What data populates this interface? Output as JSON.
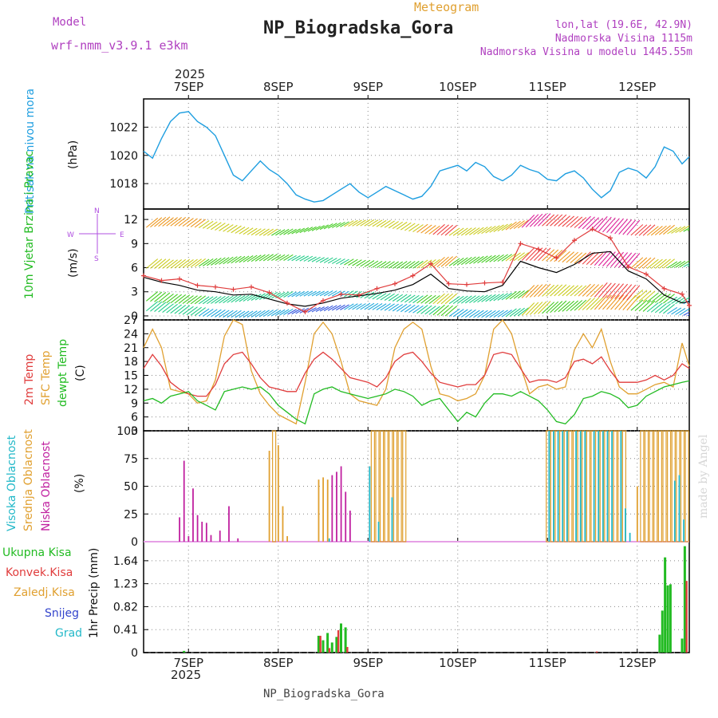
{
  "header": {
    "model_label": "Model",
    "model_name": "wrf-nmm_v3.9.1 e3km",
    "title": "NP_Biogradska_Gora",
    "chart_type": "Meteogram",
    "lonlat": "lon,lat (19.6E, 42.9N)",
    "elevation": "Nadmorska Visina 1115m",
    "model_elevation": "Nadmorska Visina u modelu 1445.55m",
    "footer_station": "NP_Biogradska_Gora",
    "watermark": "made by Angel",
    "year": "2025"
  },
  "colors": {
    "pressure": "#1e9ee0",
    "red": "#e03c3c",
    "orange": "#e0a030",
    "green": "#22bb22",
    "purple": "#b040c0",
    "cyan": "#22b8c8",
    "blue": "#3344cc",
    "magenta": "#c020a0",
    "violet": "#b050e0"
  },
  "axes": {
    "dates": [
      "7SEP",
      "8SEP",
      "9SEP",
      "10SEP",
      "11SEP",
      "12SEP"
    ],
    "x_range_days": [
      6.5,
      12.58
    ]
  },
  "chart_data": [
    {
      "type": "line",
      "panel": "pressure",
      "ylabel_desc": "Pritisak na nivou mora",
      "ylabel_unit": "(hPa)",
      "ylim": [
        1016.2,
        1024.0
      ],
      "yticks": [
        1018,
        1020,
        1022
      ],
      "series": [
        {
          "name": "MSLP",
          "x": [
            6.5,
            6.6,
            6.7,
            6.8,
            6.9,
            7.0,
            7.1,
            7.2,
            7.3,
            7.4,
            7.5,
            7.6,
            7.7,
            7.8,
            7.9,
            8.0,
            8.1,
            8.2,
            8.3,
            8.4,
            8.5,
            8.6,
            8.7,
            8.8,
            8.9,
            9.0,
            9.1,
            9.2,
            9.3,
            9.4,
            9.5,
            9.6,
            9.7,
            9.8,
            9.9,
            10.0,
            10.1,
            10.2,
            10.3,
            10.4,
            10.5,
            10.6,
            10.7,
            10.8,
            10.9,
            11.0,
            11.1,
            11.2,
            11.3,
            11.4,
            11.5,
            11.6,
            11.7,
            11.8,
            11.9,
            12.0,
            12.1,
            12.2,
            12.3,
            12.4,
            12.5,
            12.58
          ],
          "values": [
            1020.3,
            1019.8,
            1021.2,
            1022.4,
            1023.0,
            1023.1,
            1022.4,
            1022.0,
            1021.4,
            1020.0,
            1018.6,
            1018.2,
            1018.9,
            1019.6,
            1019.0,
            1018.6,
            1018.0,
            1017.2,
            1016.9,
            1016.7,
            1016.8,
            1017.2,
            1017.6,
            1018.0,
            1017.4,
            1017.0,
            1017.4,
            1017.8,
            1017.5,
            1017.2,
            1016.9,
            1017.1,
            1017.8,
            1018.9,
            1019.1,
            1019.3,
            1018.9,
            1019.5,
            1019.2,
            1018.5,
            1018.2,
            1018.6,
            1019.3,
            1019.0,
            1018.8,
            1018.3,
            1018.2,
            1018.7,
            1018.9,
            1018.4,
            1017.6,
            1017.0,
            1017.5,
            1018.8,
            1019.1,
            1018.9,
            1018.4,
            1019.2,
            1020.6,
            1020.3,
            1019.4,
            1019.9
          ]
        }
      ]
    },
    {
      "type": "line",
      "panel": "wind",
      "ylabel_desc": "10m Vjetar Brzina i Pravac",
      "ylabel_unit": "(m/s)",
      "compass_labels": [
        "W",
        "E",
        "N",
        "S"
      ],
      "ylim": [
        -0.5,
        13.3
      ],
      "yticks": [
        0,
        3,
        6,
        9,
        12
      ],
      "series": [
        {
          "name": "Speed",
          "x": [
            6.5,
            6.7,
            6.9,
            7.1,
            7.3,
            7.5,
            7.7,
            7.9,
            8.1,
            8.3,
            8.5,
            8.7,
            8.9,
            9.1,
            9.3,
            9.5,
            9.7,
            9.9,
            10.1,
            10.3,
            10.5,
            10.7,
            10.9,
            11.1,
            11.3,
            11.5,
            11.7,
            11.9,
            12.1,
            12.3,
            12.5,
            12.58
          ],
          "values": [
            4.8,
            4.2,
            3.8,
            3.2,
            3.0,
            2.6,
            2.7,
            2.1,
            1.5,
            1.2,
            1.6,
            2.2,
            2.5,
            2.8,
            3.2,
            3.9,
            5.2,
            3.4,
            3.1,
            3.0,
            3.8,
            6.8,
            6.0,
            5.4,
            6.4,
            7.8,
            8.0,
            5.6,
            4.6,
            2.6,
            1.6,
            1.8
          ]
        },
        {
          "name": "Gust",
          "x": [
            6.5,
            6.7,
            6.9,
            7.1,
            7.3,
            7.5,
            7.7,
            7.9,
            8.1,
            8.3,
            8.5,
            8.7,
            8.9,
            9.1,
            9.3,
            9.5,
            9.7,
            9.9,
            10.1,
            10.3,
            10.5,
            10.7,
            10.9,
            11.1,
            11.3,
            11.5,
            11.7,
            11.9,
            12.1,
            12.3,
            12.5,
            12.58
          ],
          "values": [
            5.0,
            4.4,
            4.6,
            3.8,
            3.6,
            3.3,
            3.6,
            2.9,
            1.6,
            0.5,
            1.9,
            2.7,
            2.6,
            3.4,
            4.0,
            5.0,
            6.5,
            4.0,
            3.9,
            4.1,
            4.2,
            9.0,
            8.3,
            7.2,
            9.4,
            10.8,
            9.7,
            6.1,
            5.2,
            3.4,
            2.7,
            1.3
          ]
        }
      ]
    },
    {
      "type": "line",
      "panel": "temperature",
      "ylabel_desc1": "2m Temp",
      "ylabel_desc2": "SFC Temp",
      "ylabel_desc3": "dewpt Temp",
      "ylabel_unit": "(C)",
      "ylim": [
        3,
        27
      ],
      "yticks": [
        3,
        6,
        9,
        12,
        15,
        18,
        21,
        24,
        27
      ],
      "series": [
        {
          "name": "2m Temp",
          "x": [
            6.5,
            6.6,
            6.7,
            6.8,
            6.9,
            7.0,
            7.1,
            7.2,
            7.3,
            7.4,
            7.5,
            7.6,
            7.7,
            7.8,
            7.9,
            8.0,
            8.1,
            8.2,
            8.3,
            8.4,
            8.5,
            8.6,
            8.7,
            8.8,
            8.9,
            9.0,
            9.1,
            9.2,
            9.3,
            9.4,
            9.5,
            9.6,
            9.7,
            9.8,
            9.9,
            10.0,
            10.1,
            10.2,
            10.3,
            10.4,
            10.5,
            10.6,
            10.7,
            10.8,
            10.9,
            11.0,
            11.1,
            11.2,
            11.3,
            11.4,
            11.5,
            11.6,
            11.7,
            11.8,
            11.9,
            12.0,
            12.1,
            12.2,
            12.3,
            12.4,
            12.5,
            12.58
          ],
          "values": [
            16.5,
            19.5,
            17.0,
            13.5,
            12.0,
            11.0,
            10.5,
            10.5,
            13.0,
            17.5,
            19.5,
            20.0,
            17.5,
            14.5,
            12.5,
            12.0,
            11.5,
            11.5,
            15.5,
            18.5,
            20.0,
            18.5,
            16.5,
            14.5,
            14.0,
            13.5,
            12.5,
            14.5,
            18.0,
            19.5,
            20.0,
            18.0,
            15.5,
            13.5,
            13.0,
            12.5,
            13.0,
            13.0,
            15.0,
            19.5,
            20.0,
            19.5,
            16.5,
            13.5,
            14.0,
            14.0,
            13.5,
            14.5,
            18.0,
            18.5,
            17.5,
            19.0,
            16.0,
            13.5,
            13.5,
            13.5,
            14.0,
            15.0,
            14.0,
            15.0,
            17.5,
            16.5
          ]
        },
        {
          "name": "SFC Temp",
          "x": [
            6.5,
            6.6,
            6.7,
            6.8,
            6.9,
            7.0,
            7.1,
            7.2,
            7.3,
            7.4,
            7.5,
            7.6,
            7.7,
            7.8,
            7.9,
            8.0,
            8.1,
            8.2,
            8.3,
            8.4,
            8.5,
            8.6,
            8.7,
            8.8,
            8.9,
            9.0,
            9.1,
            9.2,
            9.3,
            9.4,
            9.5,
            9.6,
            9.7,
            9.8,
            9.9,
            10.0,
            10.1,
            10.2,
            10.3,
            10.4,
            10.5,
            10.6,
            10.7,
            10.8,
            10.9,
            11.0,
            11.1,
            11.2,
            11.3,
            11.4,
            11.5,
            11.6,
            11.7,
            11.8,
            11.9,
            12.0,
            12.1,
            12.2,
            12.3,
            12.4,
            12.5,
            12.58
          ],
          "values": [
            21.0,
            25.0,
            21.0,
            12.0,
            11.5,
            11.0,
            9.0,
            9.5,
            14.0,
            23.5,
            27.0,
            26.0,
            16.0,
            11.0,
            8.5,
            6.5,
            5.5,
            4.5,
            13.5,
            24.0,
            26.5,
            24.0,
            18.0,
            11.0,
            9.5,
            9.0,
            8.5,
            12.0,
            21.0,
            25.0,
            26.5,
            25.0,
            17.0,
            11.0,
            10.5,
            9.5,
            10.0,
            11.0,
            15.0,
            25.0,
            27.0,
            24.0,
            17.0,
            11.0,
            12.5,
            13.0,
            12.0,
            12.5,
            20.5,
            24.0,
            21.0,
            25.0,
            18.0,
            12.5,
            11.0,
            11.0,
            12.0,
            13.0,
            13.5,
            12.5,
            22.0,
            17.0
          ]
        },
        {
          "name": "dewpt Temp",
          "x": [
            6.5,
            6.6,
            6.7,
            6.8,
            6.9,
            7.0,
            7.1,
            7.2,
            7.3,
            7.4,
            7.5,
            7.6,
            7.7,
            7.8,
            7.9,
            8.0,
            8.1,
            8.2,
            8.3,
            8.4,
            8.5,
            8.6,
            8.7,
            8.8,
            8.9,
            9.0,
            9.1,
            9.2,
            9.3,
            9.4,
            9.5,
            9.6,
            9.7,
            9.8,
            9.9,
            10.0,
            10.1,
            10.2,
            10.3,
            10.4,
            10.5,
            10.6,
            10.7,
            10.8,
            10.9,
            11.0,
            11.1,
            11.2,
            11.3,
            11.4,
            11.5,
            11.6,
            11.7,
            11.8,
            11.9,
            12.0,
            12.1,
            12.2,
            12.3,
            12.4,
            12.5,
            12.58
          ],
          "values": [
            9.5,
            10.0,
            9.0,
            10.5,
            11.0,
            11.5,
            9.5,
            8.5,
            7.5,
            11.5,
            12.0,
            12.5,
            12.0,
            12.5,
            11.0,
            8.5,
            7.0,
            5.5,
            4.5,
            11.0,
            12.0,
            12.5,
            11.5,
            11.0,
            10.5,
            10.0,
            10.5,
            11.0,
            12.0,
            11.5,
            10.5,
            8.5,
            9.5,
            10.0,
            7.5,
            5.0,
            7.0,
            6.0,
            9.0,
            11.0,
            11.0,
            10.5,
            11.5,
            10.5,
            9.5,
            7.5,
            5.0,
            4.5,
            6.5,
            10.0,
            10.5,
            11.5,
            11.0,
            10.0,
            8.0,
            8.5,
            10.5,
            11.5,
            12.5,
            13.0,
            13.5,
            13.8
          ]
        }
      ]
    },
    {
      "type": "bar",
      "panel": "clouds",
      "ylabel_desc1": "Visoka Oblacnost",
      "ylabel_desc2": "Srednja Oblacnost",
      "ylabel_desc3": "Niska Oblacnost",
      "ylabel_unit": "(%)",
      "ylim": [
        0,
        100
      ],
      "yticks": [
        0,
        25,
        50,
        75,
        100
      ],
      "series": [
        {
          "name": "Niska",
          "x": [
            6.9,
            6.95,
            7.0,
            7.05,
            7.1,
            7.15,
            7.2,
            7.25,
            7.35,
            7.45,
            7.55,
            8.6,
            8.65,
            8.7,
            8.75,
            8.8
          ],
          "values": [
            22,
            73,
            5,
            48,
            24,
            18,
            17,
            6,
            10,
            32,
            3,
            60,
            63,
            68,
            45,
            28
          ]
        },
        {
          "name": "Srednja",
          "x": [
            7.9,
            7.95,
            8.0,
            8.05,
            8.1,
            8.45,
            8.5,
            8.55,
            9.05,
            9.1,
            9.15,
            9.2,
            9.25,
            9.3,
            9.35,
            9.4,
            11.0,
            11.05,
            11.1,
            11.15,
            11.2,
            11.25,
            11.3,
            11.35,
            11.4,
            11.45,
            11.5,
            11.55,
            11.6,
            11.65,
            11.7,
            11.75,
            11.8,
            11.85,
            12.0,
            12.05,
            12.1,
            12.15,
            12.2,
            12.25,
            12.3,
            12.35,
            12.4,
            12.45,
            12.5,
            12.55
          ],
          "values": [
            82,
            100,
            87,
            32,
            5,
            56,
            58,
            56,
            100,
            100,
            100,
            100,
            100,
            100,
            100,
            100,
            100,
            100,
            100,
            100,
            100,
            100,
            100,
            100,
            100,
            100,
            100,
            100,
            100,
            100,
            100,
            100,
            100,
            100,
            50,
            100,
            100,
            100,
            100,
            100,
            100,
            100,
            100,
            100,
            100,
            100
          ]
        },
        {
          "name": "Visoka",
          "x": [
            8.55,
            9.0,
            9.1,
            9.25,
            11.0,
            11.05,
            11.1,
            11.15,
            11.2,
            11.3,
            11.35,
            11.4,
            11.5,
            11.55,
            11.6,
            11.65,
            11.7,
            11.8,
            11.85,
            11.9,
            12.4,
            12.45,
            12.5
          ],
          "values": [
            3,
            68,
            18,
            40,
            100,
            100,
            100,
            100,
            100,
            100,
            100,
            100,
            100,
            100,
            100,
            100,
            100,
            100,
            30,
            8,
            55,
            60,
            20
          ]
        }
      ]
    },
    {
      "type": "bar",
      "panel": "precip",
      "legend": [
        "Ukupna Kisa",
        "Konvek.Kisa",
        "Zaledj.Kisa",
        "Snijeg",
        "Grad"
      ],
      "ylabel_unit": "1hr Precip (mm)",
      "ylim": [
        0,
        1.98
      ],
      "yticks": [
        0,
        0.41,
        0.82,
        1.23,
        1.64
      ],
      "ytick_labels": [
        "0",
        "0.41",
        "0.82",
        "1.23",
        "1.64"
      ],
      "series": [
        {
          "name": "Ukupna",
          "x": [
            6.95,
            8.45,
            8.5,
            8.55,
            8.6,
            8.65,
            8.7,
            8.75,
            12.25,
            12.28,
            12.31,
            12.34,
            12.37,
            12.5,
            12.53
          ],
          "values": [
            0.03,
            0.3,
            0.22,
            0.35,
            0.18,
            0.28,
            0.52,
            0.45,
            0.32,
            0.75,
            1.7,
            1.2,
            1.22,
            0.25,
            1.9
          ]
        },
        {
          "name": "Konvek",
          "x": [
            8.47,
            8.57,
            8.67,
            8.77,
            11.55,
            12.55
          ],
          "values": [
            0.3,
            0.08,
            0.4,
            0.1,
            0.02,
            1.28
          ]
        }
      ]
    }
  ]
}
